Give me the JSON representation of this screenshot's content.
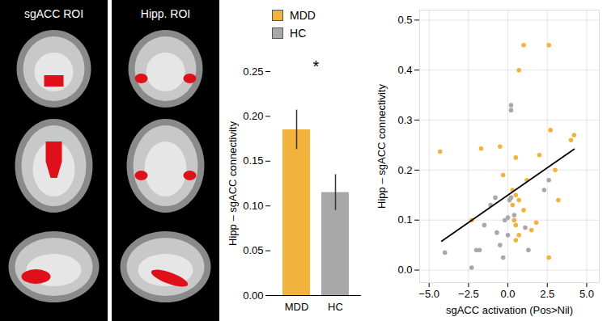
{
  "images": [
    {
      "title": "sgACC ROI"
    },
    {
      "title": "Hipp. ROI"
    }
  ],
  "chart_data": [
    {
      "type": "bar",
      "categories": [
        "MDD",
        "HC"
      ],
      "values": [
        0.185,
        0.115
      ],
      "errors": [
        0.022,
        0.02
      ],
      "colors": [
        "#f2b33d",
        "#a8a8a8"
      ],
      "ylabel": "Hipp – sgACC connectivity",
      "ylim": [
        0,
        0.25
      ],
      "yticks": [
        0,
        0.05,
        0.1,
        0.15,
        0.2,
        0.25
      ],
      "legend": "top",
      "annotations": [
        "*"
      ]
    },
    {
      "type": "scatter",
      "xlabel": "sgACC activation (Pos>Nil)",
      "ylabel": "Hipp – sgACC connectivity",
      "xlim": [
        -5.6,
        5.8
      ],
      "ylim": [
        -0.025,
        0.52
      ],
      "xticks": [
        {
          "value": -5,
          "label": "−5.0"
        },
        {
          "value": -2.5,
          "label": "−2.5"
        },
        {
          "value": 0,
          "label": "0.0"
        },
        {
          "value": 2.5,
          "label": "2.5"
        },
        {
          "value": 5,
          "label": "5.0"
        }
      ],
      "yticks": [
        {
          "value": 0,
          "label": "0.0"
        },
        {
          "value": 0.1,
          "label": "0.1"
        },
        {
          "value": 0.2,
          "label": "0.2"
        },
        {
          "value": 0.3,
          "label": "0.3"
        },
        {
          "value": 0.4,
          "label": "0.4"
        },
        {
          "value": 0.5,
          "label": "0.5"
        }
      ],
      "grid": true,
      "series": [
        {
          "name": "MDD",
          "color": "#f2b33d",
          "x": [
            -4.3,
            -1.7,
            -2.3,
            -0.5,
            -0.3,
            0.5,
            0.7,
            1.0,
            2.6,
            0.3,
            0.5,
            0.7,
            0.3,
            1.0,
            1.2,
            1.5,
            1.8,
            0.5,
            0.7,
            0.5,
            0.4,
            2.0,
            2.7,
            2.6,
            3.2,
            3.0,
            4.0,
            4.2
          ],
          "y": [
            0.237,
            0.243,
            0.1,
            0.247,
            0.19,
            0.225,
            0.4,
            0.45,
            0.45,
            0.16,
            0.15,
            0.14,
            0.13,
            0.12,
            0.18,
            0.08,
            0.095,
            0.09,
            0.07,
            0.06,
            0.1,
            0.23,
            0.28,
            0.025,
            0.14,
            0.2,
            0.26,
            0.27
          ]
        },
        {
          "name": "HC",
          "color": "#a8a8a8",
          "x": [
            -4.0,
            -2.0,
            -1.8,
            -1.5,
            -0.8,
            -1.1,
            -0.7,
            -0.5,
            -0.3,
            0.0,
            0.2,
            0.1,
            0.2,
            0.2,
            0.4,
            0.0,
            -2.3,
            1.1,
            1.3,
            2.3,
            2.6,
            -0.2
          ],
          "y": [
            0.035,
            0.04,
            0.04,
            0.09,
            0.145,
            0.13,
            0.075,
            0.05,
            0.025,
            0.105,
            0.145,
            0.14,
            0.32,
            0.33,
            0.11,
            0.07,
            0.005,
            0.085,
            0.04,
            0.16,
            0.18,
            0.1
          ]
        }
      ],
      "fit": {
        "x": [
          -4.2,
          4.2
        ],
        "y": [
          0.058,
          0.242
        ]
      }
    }
  ]
}
